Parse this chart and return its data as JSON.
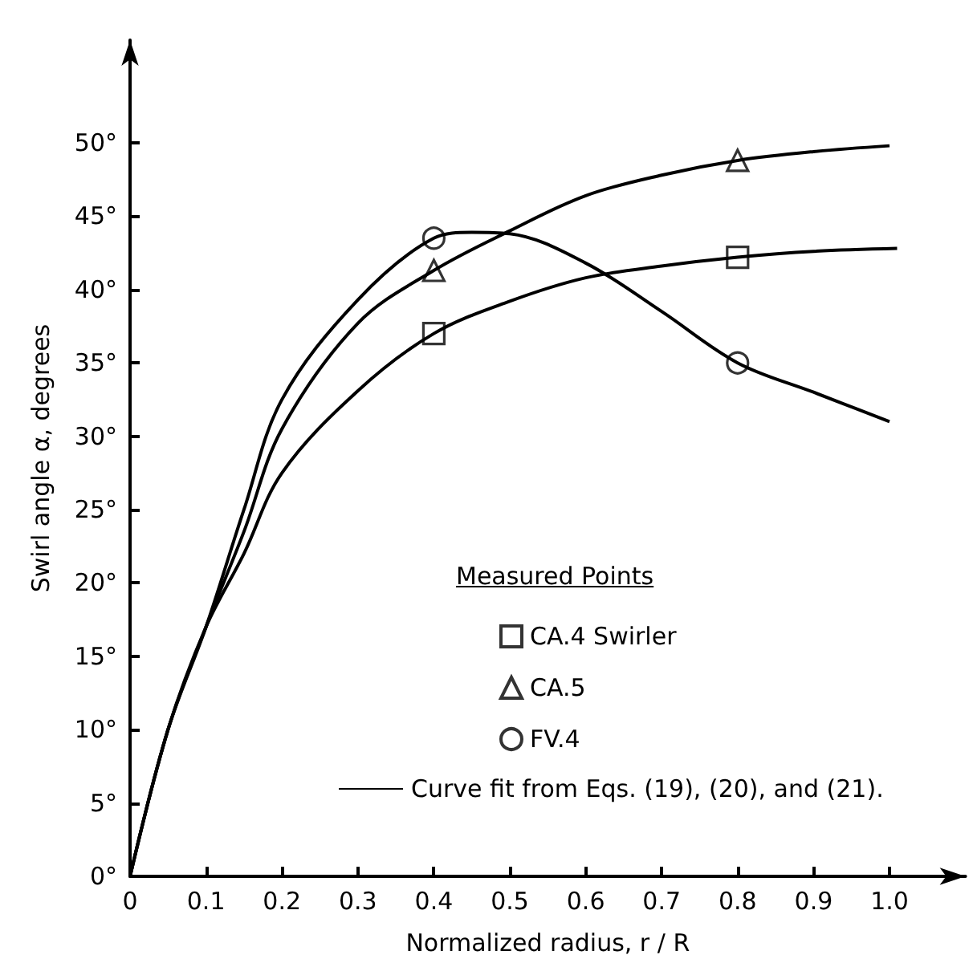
{
  "chart_data": {
    "type": "line",
    "xlabel": "Normalized radius, r / R",
    "ylabel": "Swirl angle α, degrees",
    "legend_title": "Measured Points",
    "legend": "bottom right",
    "xlim": [
      0,
      1.1
    ],
    "ylim": [
      0,
      57
    ],
    "xticks": [
      0,
      0.1,
      0.2,
      0.3,
      0.4,
      0.5,
      0.6,
      0.7,
      0.8,
      0.9,
      {
        "value": 1,
        "label": "1.0"
      }
    ],
    "yticks": [
      {
        "value": 0,
        "label": "0°"
      },
      {
        "value": 5,
        "label": "5°"
      },
      {
        "value": 10,
        "label": "10°"
      },
      {
        "value": 15,
        "label": "15°"
      },
      {
        "value": 20,
        "label": "20°"
      },
      {
        "value": 25,
        "label": "25°"
      },
      {
        "value": 30,
        "label": "30°"
      },
      {
        "value": 35,
        "label": "35°"
      },
      {
        "value": 40,
        "label": "40°"
      },
      {
        "value": 45,
        "label": "45°"
      },
      {
        "value": 50,
        "label": "50°"
      }
    ],
    "series": [
      {
        "type": "scatter",
        "name": "CA.4 Swirler",
        "marker": "square",
        "color": "#000000",
        "x": [
          0.4,
          0.8
        ],
        "values": [
          37,
          42.2
        ]
      },
      {
        "type": "scatter",
        "name": "CA.5",
        "marker": "triangle",
        "color": "#000000",
        "x": [
          0.4,
          0.8
        ],
        "values": [
          41.3,
          48.8
        ]
      },
      {
        "type": "scatter",
        "name": "FV.4",
        "marker": "circle",
        "color": "#000000",
        "x": [
          0.4,
          0.8
        ],
        "values": [
          43.5,
          35
        ]
      },
      {
        "type": "line",
        "name": "Curve fit from Eqs. (19), (20), and (21).",
        "marker": "none",
        "color": "#000000",
        "x": [
          0,
          0.05,
          0.1,
          0.15,
          0.2,
          0.3,
          0.4,
          0.45,
          0.5,
          0.6,
          0.7,
          0.8,
          0.9,
          1.0
        ],
        "values": [
          0,
          10,
          17,
          25,
          32.5,
          39.3,
          43.5,
          43.9,
          43.8,
          41.8,
          38.5,
          35,
          33,
          31
        ]
      },
      {
        "type": "line",
        "marker": "none",
        "color": "#000000",
        "x": [
          0,
          0.05,
          0.1,
          0.15,
          0.2,
          0.3,
          0.4,
          0.5,
          0.6,
          0.7,
          0.8,
          0.9,
          1.0
        ],
        "values": [
          0,
          10,
          17,
          23.5,
          30.5,
          37.7,
          41.3,
          44,
          46.4,
          47.8,
          48.8,
          49.4,
          49.8
        ]
      },
      {
        "type": "line",
        "marker": "none",
        "color": "#000000",
        "x": [
          0,
          0.05,
          0.1,
          0.15,
          0.2,
          0.3,
          0.4,
          0.5,
          0.6,
          0.7,
          0.8,
          0.9,
          1.01
        ],
        "values": [
          0,
          10,
          17,
          22,
          27.5,
          33.1,
          37,
          39.2,
          40.8,
          41.6,
          42.2,
          42.6,
          42.8
        ]
      }
    ]
  }
}
